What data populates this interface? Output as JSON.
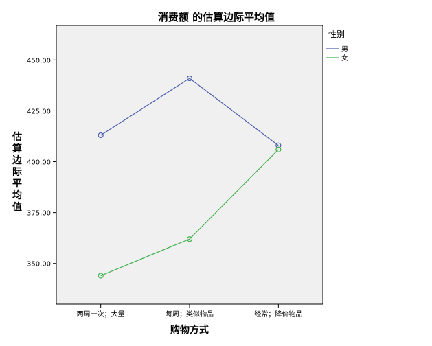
{
  "chart_data": {
    "type": "line",
    "title": "消费额 的估算边际平均值",
    "xlabel": "购物方式",
    "ylabel": "估算边际平均值",
    "categories": [
      "两周一次；大量",
      "每周；类似物品",
      "经常；降价物品"
    ],
    "ylim": [
      330,
      467
    ],
    "yticks": [
      350,
      375,
      400,
      425,
      450
    ],
    "ytick_labels": [
      "350.00",
      "375.00",
      "400.00",
      "425.00",
      "450.00"
    ],
    "legend": {
      "title": "性别",
      "position": "right"
    },
    "series": [
      {
        "name": "男",
        "color": "#4a5fae",
        "values": [
          413,
          441,
          408
        ]
      },
      {
        "name": "女",
        "color": "#3cb04a",
        "values": [
          344,
          362,
          406
        ]
      }
    ]
  }
}
